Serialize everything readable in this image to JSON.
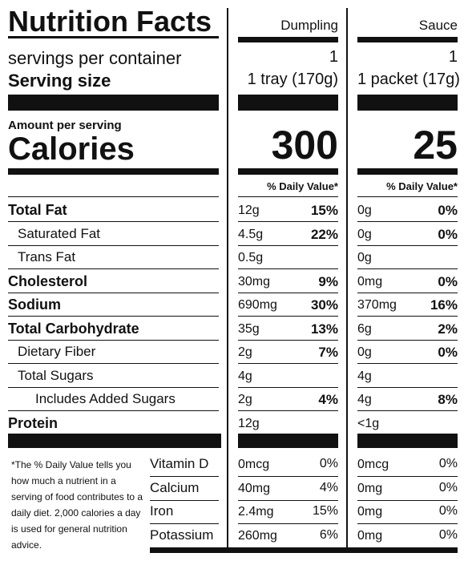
{
  "title": "Nutrition Facts",
  "columns": [
    "Dumpling",
    "Sauce"
  ],
  "servings_label": "servings per container",
  "servings": [
    "1",
    "1"
  ],
  "serving_size_label": "Serving size",
  "serving_size": [
    "1 tray (170g)",
    "1 packet (17g)"
  ],
  "amount_per_serving": "Amount per serving",
  "calories_label": "Calories",
  "calories": [
    300,
    25
  ],
  "daily_value_header": [
    "% Daily Value*",
    "% Daily Value*"
  ],
  "nutrients": [
    {
      "name": "Total Fat",
      "values": [
        [
          "12g",
          "15%"
        ],
        [
          "0g",
          "0%"
        ]
      ]
    },
    {
      "name": "Saturated Fat",
      "values": [
        [
          "4.5g",
          "22%"
        ],
        [
          "0g",
          "0%"
        ]
      ]
    },
    {
      "name": "Trans Fat",
      "values": [
        [
          "0.5g"
        ],
        [
          "0g"
        ]
      ]
    },
    {
      "name": "Cholesterol",
      "values": [
        [
          "30mg",
          "9%"
        ],
        [
          "0mg",
          "0%"
        ]
      ]
    },
    {
      "name": "Sodium",
      "values": [
        [
          "690mg",
          "30%"
        ],
        [
          "370mg",
          "16%"
        ]
      ]
    },
    {
      "name": "Total Carbohydrate",
      "values": [
        [
          "35g",
          "13%"
        ],
        [
          "6g",
          "2%"
        ]
      ]
    },
    {
      "name": "Dietary Fiber",
      "values": [
        [
          "2g",
          "7%"
        ],
        [
          "0g",
          "0%"
        ]
      ]
    },
    {
      "name": "Total Sugars",
      "values": [
        [
          "4g"
        ],
        [
          "4g"
        ]
      ]
    },
    {
      "name": "Includes Added Sugars",
      "values": [
        [
          "2g",
          "4%"
        ],
        [
          "4g",
          "8%"
        ]
      ]
    },
    {
      "name": "Protein",
      "values": [
        [
          "12g"
        ],
        [
          "<1g"
        ]
      ]
    }
  ],
  "footnote": "*The % Daily Value tells you how much a nutrient in a serving of food contributes to a daily diet. 2,000 calories a day is used for general nutrition advice.",
  "vitamins": [
    {
      "name": "Vitamin D",
      "values": [
        [
          "0mcg",
          "0%"
        ],
        [
          "0mcg",
          "0%"
        ]
      ]
    },
    {
      "name": "Calcium",
      "values": [
        [
          "40mg",
          "4%"
        ],
        [
          "0mg",
          "0%"
        ]
      ]
    },
    {
      "name": "Iron",
      "values": [
        [
          "2.4mg",
          "15%"
        ],
        [
          "0mg",
          "0%"
        ]
      ]
    },
    {
      "name": "Potassium",
      "values": [
        [
          "260mg",
          "6%"
        ],
        [
          "0mg",
          "0%"
        ]
      ]
    }
  ]
}
